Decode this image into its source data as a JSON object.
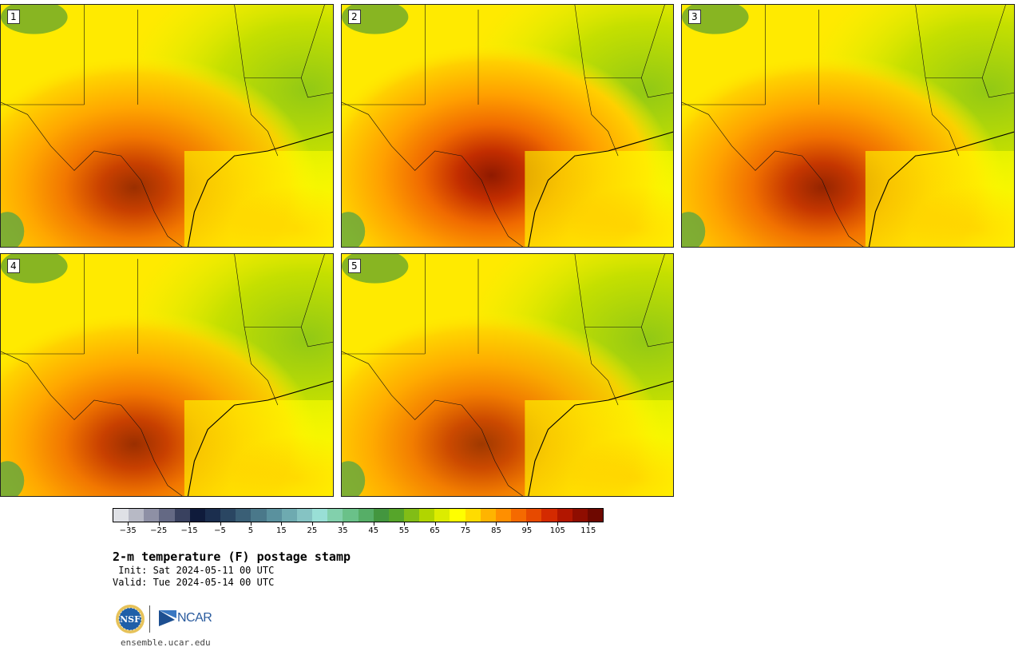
{
  "title": "2-m temperature (F) postage stamp",
  "init": " Init: Sat 2024-05-11 00 UTC",
  "valid": "Valid: Tue 2024-05-14 00 UTC",
  "site": "ensemble.ucar.edu",
  "logos": {
    "nsf": "NSF",
    "ncar": "NCAR"
  },
  "panels": [
    {
      "label": "1",
      "hot_spot": [
        0.4,
        0.75
      ],
      "hot_level": 0.9
    },
    {
      "label": "2",
      "hot_spot": [
        0.45,
        0.7
      ],
      "hot_level": 1.0
    },
    {
      "label": "3",
      "hot_spot": [
        0.42,
        0.75
      ],
      "hot_level": 0.95
    },
    {
      "label": "4",
      "hot_spot": [
        0.4,
        0.78
      ],
      "hot_level": 0.9
    },
    {
      "label": "5",
      "hot_spot": [
        0.42,
        0.78
      ],
      "hot_level": 0.85
    }
  ],
  "colorbar": {
    "colors": [
      "#dfe1e6",
      "#b7b9c5",
      "#8e90a5",
      "#646984",
      "#39415f",
      "#0f1b3b",
      "#1b2e4e",
      "#2a4662",
      "#3a5f76",
      "#4a788a",
      "#5a919e",
      "#6eaab0",
      "#85c3c3",
      "#99dfd6",
      "#82d0ac",
      "#6ac189",
      "#56ae67",
      "#43963f",
      "#56a52a",
      "#81bd16",
      "#b1d500",
      "#dcec00",
      "#ffff00",
      "#ffdc00",
      "#ffb400",
      "#ff8f00",
      "#f56a00",
      "#e74a00",
      "#d42a00",
      "#b21600",
      "#8f0d00",
      "#6e0800"
    ],
    "ticks": [
      "−35",
      "−25",
      "−15",
      "−5",
      "5",
      "15",
      "25",
      "35",
      "45",
      "55",
      "65",
      "75",
      "85",
      "95",
      "105",
      "115"
    ],
    "min": -40,
    "max": 120
  }
}
